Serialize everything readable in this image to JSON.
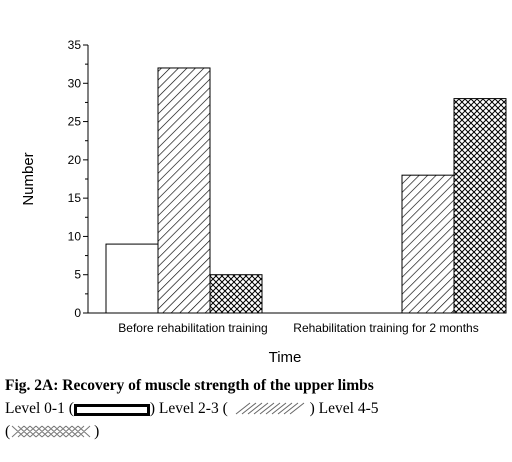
{
  "chart_data": {
    "type": "bar",
    "categories": [
      "Before rehabilitation training",
      "Rehabilitation training for 2 months"
    ],
    "series": [
      {
        "name": "Level 0-1",
        "values": [
          9,
          0
        ],
        "pattern": "solid-white"
      },
      {
        "name": "Level 2-3",
        "values": [
          32,
          18
        ],
        "pattern": "diagonal-hatch"
      },
      {
        "name": "Level 4-5",
        "values": [
          5,
          28
        ],
        "pattern": "cross-hatch"
      }
    ],
    "xlabel": "Time",
    "ylabel": "Number",
    "ylim": [
      0,
      35
    ],
    "yticks": [
      "0",
      "5",
      "10",
      "15",
      "20",
      "25",
      "30",
      "35"
    ],
    "grid": false,
    "legend_placement": "below caption"
  },
  "caption": {
    "title": "Fig. 2A: Recovery of muscle strength of the upper limbs",
    "legend_0_label": "Level 0-1 (",
    "legend_1_prefix": ") Level 2-3  (",
    "legend_2_prefix": ") Level 4-5",
    "legend_open": "(",
    "legend_close": ")"
  }
}
